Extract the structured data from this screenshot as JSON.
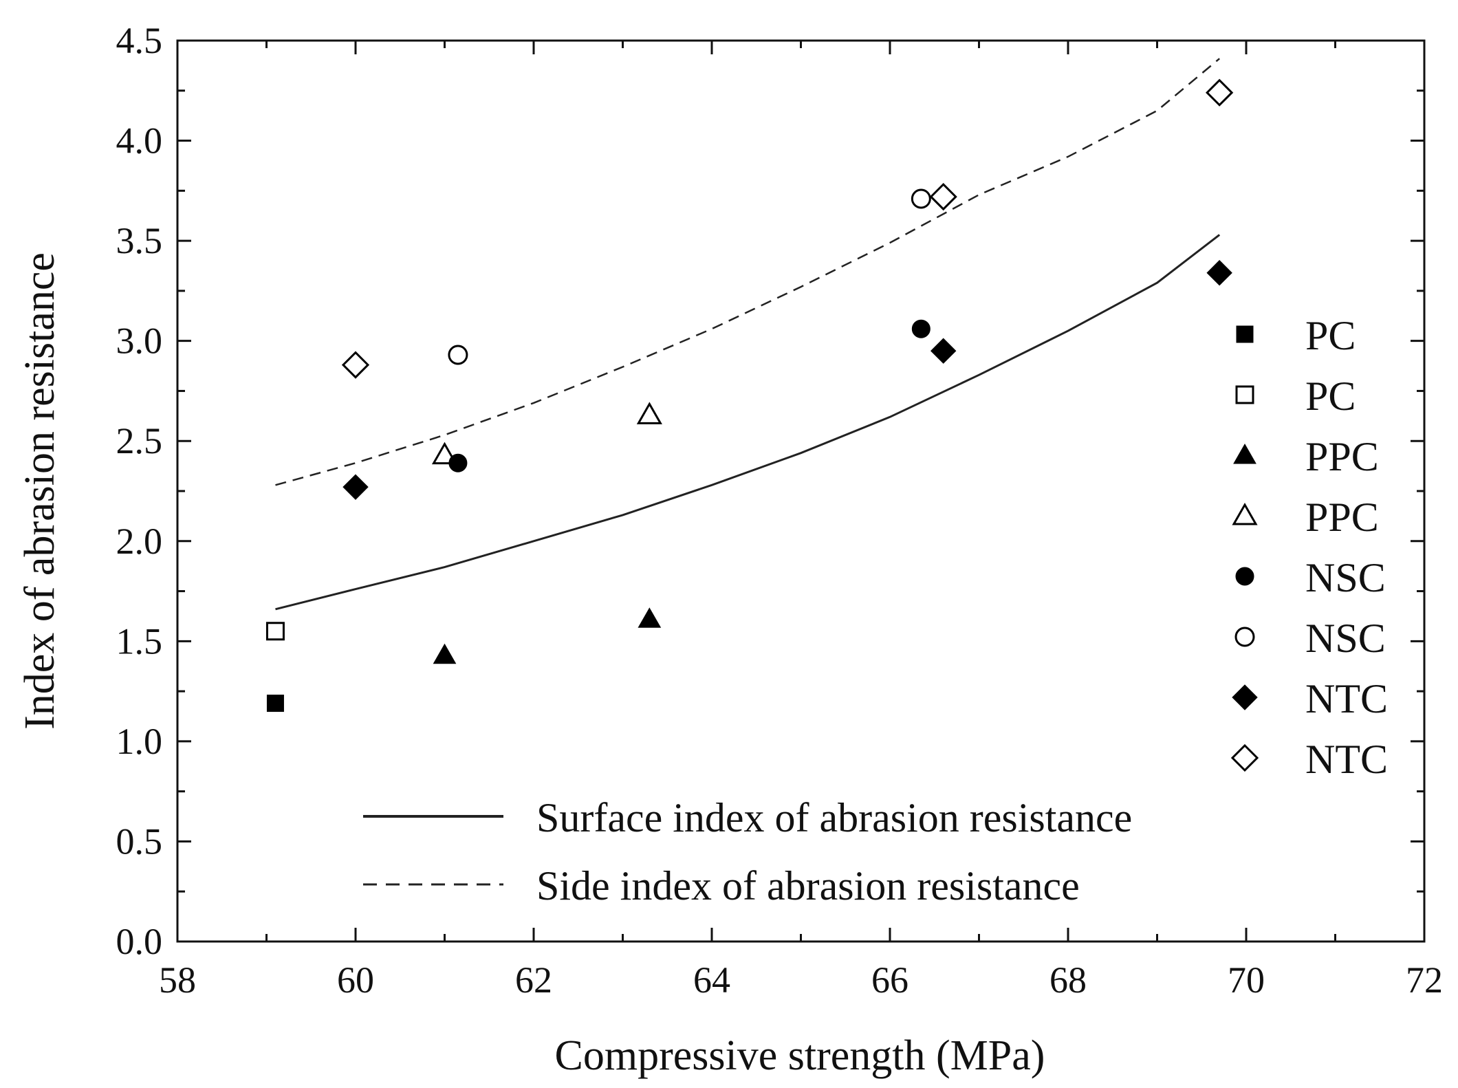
{
  "chart_data": {
    "type": "scatter",
    "title": "",
    "xlabel": "Compressive strength (MPa)",
    "ylabel": "Index of abrasion resistance",
    "xlim": [
      58,
      72
    ],
    "ylim": [
      0.0,
      4.5
    ],
    "x_ticks": [
      "58",
      "60",
      "62",
      "64",
      "66",
      "68",
      "70",
      "72"
    ],
    "y_ticks": [
      "0.0",
      "0.5",
      "1.0",
      "1.5",
      "2.0",
      "2.5",
      "3.0",
      "3.5",
      "4.0",
      "4.5"
    ],
    "grid": false,
    "legend_position": "right",
    "series": [
      {
        "name": "PC",
        "marker": "square",
        "filled": true,
        "points": [
          {
            "x": 59.1,
            "y": 1.19
          }
        ]
      },
      {
        "name": "PC",
        "marker": "square",
        "filled": false,
        "points": [
          {
            "x": 59.1,
            "y": 1.55
          }
        ]
      },
      {
        "name": "PPC",
        "marker": "triangle",
        "filled": true,
        "points": [
          {
            "x": 61.0,
            "y": 1.43
          },
          {
            "x": 63.3,
            "y": 1.61
          }
        ]
      },
      {
        "name": "PPC",
        "marker": "triangle",
        "filled": false,
        "points": [
          {
            "x": 61.0,
            "y": 2.43
          },
          {
            "x": 63.3,
            "y": 2.63
          }
        ]
      },
      {
        "name": "NSC",
        "marker": "circle",
        "filled": true,
        "points": [
          {
            "x": 61.15,
            "y": 2.39
          },
          {
            "x": 66.35,
            "y": 3.06
          }
        ]
      },
      {
        "name": "NSC",
        "marker": "circle",
        "filled": false,
        "points": [
          {
            "x": 61.15,
            "y": 2.93
          },
          {
            "x": 66.35,
            "y": 3.71
          }
        ]
      },
      {
        "name": "NTC",
        "marker": "diamond",
        "filled": true,
        "points": [
          {
            "x": 60.0,
            "y": 2.27
          },
          {
            "x": 66.6,
            "y": 2.95
          },
          {
            "x": 69.7,
            "y": 3.34
          }
        ]
      },
      {
        "name": "NTC",
        "marker": "diamond",
        "filled": false,
        "points": [
          {
            "x": 60.0,
            "y": 2.88
          },
          {
            "x": 66.6,
            "y": 3.72
          },
          {
            "x": 69.7,
            "y": 4.24
          }
        ]
      }
    ],
    "fit_lines": [
      {
        "name": "Surface index of abrasion resistance",
        "style": "solid",
        "points": [
          {
            "x": 59.1,
            "y": 1.66
          },
          {
            "x": 60,
            "y": 1.76
          },
          {
            "x": 61,
            "y": 1.87
          },
          {
            "x": 62,
            "y": 2.0
          },
          {
            "x": 63,
            "y": 2.13
          },
          {
            "x": 64,
            "y": 2.28
          },
          {
            "x": 65,
            "y": 2.44
          },
          {
            "x": 66,
            "y": 2.62
          },
          {
            "x": 67,
            "y": 2.83
          },
          {
            "x": 68,
            "y": 3.05
          },
          {
            "x": 69,
            "y": 3.29
          },
          {
            "x": 69.7,
            "y": 3.53
          }
        ]
      },
      {
        "name": "Side index of abrasion resistance",
        "style": "dashed",
        "points": [
          {
            "x": 59.1,
            "y": 2.28
          },
          {
            "x": 60,
            "y": 2.39
          },
          {
            "x": 61,
            "y": 2.53
          },
          {
            "x": 62,
            "y": 2.69
          },
          {
            "x": 63,
            "y": 2.87
          },
          {
            "x": 64,
            "y": 3.06
          },
          {
            "x": 65,
            "y": 3.27
          },
          {
            "x": 66,
            "y": 3.49
          },
          {
            "x": 67,
            "y": 3.73
          },
          {
            "x": 68,
            "y": 3.92
          },
          {
            "x": 69,
            "y": 4.15
          },
          {
            "x": 69.7,
            "y": 4.41
          }
        ]
      }
    ]
  }
}
